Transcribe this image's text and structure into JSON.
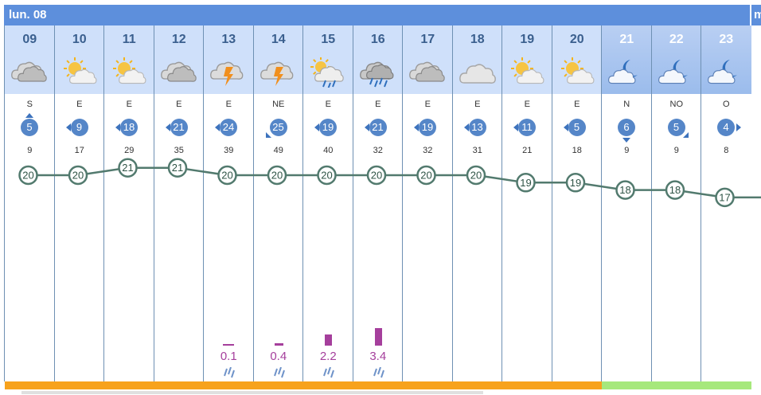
{
  "day_header": {
    "label": "lun. 08",
    "next_label": "m"
  },
  "colors": {
    "day_bar": "#f7a21c",
    "night_bar": "#a6e87c",
    "rain": "#a53f9c",
    "temp_line": "#527a6e",
    "wind_circle": "#5586c8"
  },
  "hours": [
    {
      "hour": "09",
      "icon": "cloudy-icon",
      "wind_dir": "S",
      "wind_speed": "5",
      "wind_arrow": "up",
      "gust": "9",
      "temp": "20",
      "rain": "",
      "rain_mm": 0,
      "night": false
    },
    {
      "hour": "10",
      "icon": "sun-cloud-icon",
      "wind_dir": "E",
      "wind_speed": "9",
      "wind_arrow": "left",
      "gust": "17",
      "temp": "20",
      "rain": "",
      "rain_mm": 0,
      "night": false
    },
    {
      "hour": "11",
      "icon": "sun-cloud-icon",
      "wind_dir": "E",
      "wind_speed": "18",
      "wind_arrow": "left",
      "gust": "29",
      "temp": "21",
      "rain": "",
      "rain_mm": 0,
      "night": false
    },
    {
      "hour": "12",
      "icon": "cloudy-icon",
      "wind_dir": "E",
      "wind_speed": "21",
      "wind_arrow": "left",
      "gust": "35",
      "temp": "21",
      "rain": "",
      "rain_mm": 0,
      "night": false
    },
    {
      "hour": "13",
      "icon": "thunderstorm-icon",
      "wind_dir": "E",
      "wind_speed": "24",
      "wind_arrow": "left",
      "gust": "39",
      "temp": "20",
      "rain": "0.1",
      "rain_mm": 0.1,
      "night": false
    },
    {
      "hour": "14",
      "icon": "thunderstorm-icon",
      "wind_dir": "NE",
      "wind_speed": "25",
      "wind_arrow": "down-left",
      "gust": "49",
      "temp": "20",
      "rain": "0.4",
      "rain_mm": 0.4,
      "night": false
    },
    {
      "hour": "15",
      "icon": "sun-rain-icon",
      "wind_dir": "E",
      "wind_speed": "19",
      "wind_arrow": "left",
      "gust": "40",
      "temp": "20",
      "rain": "2.2",
      "rain_mm": 2.2,
      "night": false
    },
    {
      "hour": "16",
      "icon": "heavy-rain-icon",
      "wind_dir": "E",
      "wind_speed": "21",
      "wind_arrow": "left",
      "gust": "32",
      "temp": "20",
      "rain": "3.4",
      "rain_mm": 3.4,
      "night": false
    },
    {
      "hour": "17",
      "icon": "cloudy-icon",
      "wind_dir": "E",
      "wind_speed": "19",
      "wind_arrow": "left",
      "gust": "32",
      "temp": "20",
      "rain": "",
      "rain_mm": 0,
      "night": false
    },
    {
      "hour": "18",
      "icon": "light-cloud-icon",
      "wind_dir": "E",
      "wind_speed": "13",
      "wind_arrow": "left",
      "gust": "31",
      "temp": "20",
      "rain": "",
      "rain_mm": 0,
      "night": false
    },
    {
      "hour": "19",
      "icon": "sun-cloud-icon",
      "wind_dir": "E",
      "wind_speed": "11",
      "wind_arrow": "left",
      "gust": "21",
      "temp": "19",
      "rain": "",
      "rain_mm": 0,
      "night": false
    },
    {
      "hour": "20",
      "icon": "sun-cloud-icon",
      "wind_dir": "E",
      "wind_speed": "5",
      "wind_arrow": "left",
      "gust": "18",
      "temp": "19",
      "rain": "",
      "rain_mm": 0,
      "night": false
    },
    {
      "hour": "21",
      "icon": "moon-cloud-icon",
      "wind_dir": "N",
      "wind_speed": "6",
      "wind_arrow": "down",
      "gust": "9",
      "temp": "18",
      "rain": "",
      "rain_mm": 0,
      "night": true
    },
    {
      "hour": "22",
      "icon": "moon-cloud-icon",
      "wind_dir": "NO",
      "wind_speed": "5",
      "wind_arrow": "down-right",
      "gust": "9",
      "temp": "18",
      "rain": "",
      "rain_mm": 0,
      "night": true
    },
    {
      "hour": "23",
      "icon": "moon-cloud-icon",
      "wind_dir": "O",
      "wind_speed": "4",
      "wind_arrow": "right",
      "gust": "8",
      "temp": "17",
      "rain": "",
      "rain_mm": 0,
      "night": true
    }
  ]
}
